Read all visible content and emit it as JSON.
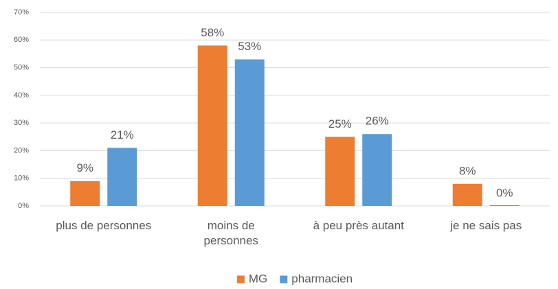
{
  "chart_data": {
    "type": "bar",
    "categories": [
      "plus de personnes",
      "moins de\npersonnes",
      "à peu près autant",
      "je ne sais pas"
    ],
    "series": [
      {
        "name": "MG",
        "color": "#ed7d31",
        "values": [
          9,
          58,
          25,
          8
        ],
        "value_labels": [
          "9%",
          "58%",
          "25%",
          "8%"
        ]
      },
      {
        "name": "pharmacien",
        "color": "#5b9bd5",
        "values": [
          21,
          53,
          26,
          0
        ],
        "value_labels": [
          "21%",
          "53%",
          "26%",
          "0%"
        ]
      }
    ],
    "ylim": [
      0,
      70
    ],
    "yticks": [
      {
        "value": 0,
        "label": "0%"
      },
      {
        "value": 10,
        "label": "10%"
      },
      {
        "value": 20,
        "label": "20%"
      },
      {
        "value": 30,
        "label": "30%"
      },
      {
        "value": 40,
        "label": "40%"
      },
      {
        "value": 50,
        "label": "50%"
      },
      {
        "value": 60,
        "label": "60%"
      },
      {
        "value": 70,
        "label": "70%"
      }
    ],
    "grid": true,
    "legend": "bottom"
  }
}
